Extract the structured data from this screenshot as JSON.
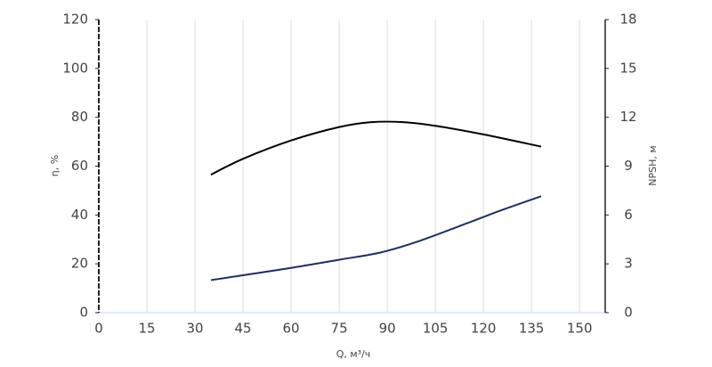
{
  "chart_data": {
    "type": "line",
    "xlabel": "Q, м³/ч",
    "ylabel": "η, %",
    "y2label": "NPSH, м",
    "xlim": [
      0,
      158
    ],
    "xticks": [
      0,
      15,
      30,
      45,
      60,
      75,
      90,
      105,
      120,
      135,
      150
    ],
    "ylim": [
      0,
      120
    ],
    "yticks": [
      0,
      20,
      40,
      60,
      80,
      100,
      120
    ],
    "y2lim": [
      0,
      18
    ],
    "y2ticks": [
      0,
      3,
      6,
      9,
      12,
      15,
      18
    ],
    "grid": true,
    "series": [
      {
        "color": "#000000",
        "x": [
          35,
          45,
          60,
          75,
          85,
          95,
          105,
          120,
          138
        ],
        "values": [
          56.5,
          63,
          70.5,
          76,
          78,
          78,
          76.5,
          73,
          68
        ]
      },
      {
        "color": "#1c2f63",
        "axis": "y2",
        "x": [
          35,
          45,
          60,
          75,
          88,
          100,
          115,
          125,
          138
        ],
        "values": [
          2.0,
          2.3,
          2.75,
          3.25,
          3.7,
          4.4,
          5.5,
          6.25,
          7.15
        ]
      }
    ]
  }
}
